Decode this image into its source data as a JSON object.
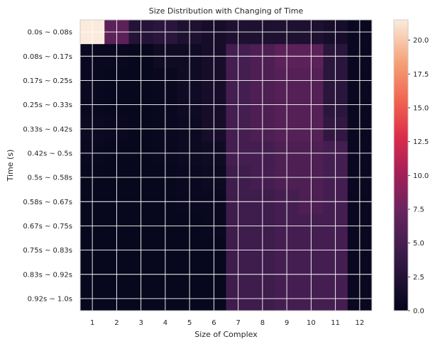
{
  "chart_data": {
    "type": "heatmap",
    "title": "Size Distribution with Changing of Time",
    "xlabel": "Size of Complex",
    "ylabel": "Time (s)",
    "x_categories": [
      "1",
      "2",
      "3",
      "4",
      "5",
      "6",
      "7",
      "8",
      "9",
      "10",
      "11",
      "12"
    ],
    "y_categories": [
      "0.0s ~ 0.08s",
      "0.08s ~ 0.17s",
      "0.17s ~ 0.25s",
      "0.25s ~ 0.33s",
      "0.33s ~ 0.42s",
      "0.42s ~ 0.5s",
      "0.5s ~ 0.58s",
      "0.58s ~ 0.67s",
      "0.67s ~ 0.75s",
      "0.75s ~ 0.83s",
      "0.83s ~ 0.92s",
      "0.92s ~ 1.0s"
    ],
    "values": [
      [
        21.5,
        6.5,
        2.5,
        3.0,
        2.0,
        1.5,
        2.0,
        2.0,
        2.0,
        2.0,
        1.5,
        0.5
      ],
      [
        0.5,
        0.5,
        0.3,
        1.0,
        1.0,
        1.5,
        5.0,
        5.5,
        6.5,
        6.5,
        3.0,
        0.5
      ],
      [
        0.5,
        0.3,
        0.3,
        0.5,
        1.0,
        1.5,
        5.0,
        5.5,
        6.0,
        6.0,
        3.0,
        0.5
      ],
      [
        0.5,
        0.3,
        0.3,
        0.5,
        1.0,
        1.5,
        5.0,
        5.5,
        6.0,
        6.0,
        3.0,
        0.5
      ],
      [
        0.7,
        0.5,
        0.3,
        0.5,
        0.7,
        1.5,
        5.0,
        5.5,
        6.0,
        6.0,
        3.5,
        0.5
      ],
      [
        0.5,
        0.3,
        0.3,
        0.5,
        0.7,
        1.0,
        5.0,
        5.0,
        5.5,
        5.5,
        5.0,
        0.5
      ],
      [
        0.3,
        0.3,
        0.3,
        0.3,
        0.5,
        0.7,
        4.5,
        5.0,
        5.5,
        5.5,
        5.0,
        0.5
      ],
      [
        0.3,
        0.3,
        0.3,
        0.3,
        0.5,
        0.5,
        4.5,
        4.5,
        5.0,
        5.5,
        5.0,
        0.5
      ],
      [
        0.3,
        0.3,
        0.3,
        0.3,
        0.3,
        0.5,
        4.5,
        4.5,
        5.0,
        5.0,
        5.0,
        0.5
      ],
      [
        0.3,
        0.3,
        0.3,
        0.3,
        0.3,
        0.3,
        4.5,
        4.5,
        5.0,
        5.0,
        5.0,
        0.5
      ],
      [
        0.3,
        0.3,
        0.3,
        0.3,
        0.3,
        0.3,
        4.5,
        4.5,
        5.0,
        5.0,
        5.0,
        0.5
      ],
      [
        0.3,
        0.3,
        0.3,
        0.3,
        0.3,
        0.3,
        4.5,
        4.5,
        5.0,
        5.0,
        5.0,
        0.5
      ]
    ],
    "colormap": "rocket",
    "vmin": 0,
    "vmax": 21.5,
    "colorbar_ticks": [
      "0.0",
      "2.5",
      "5.0",
      "7.5",
      "10.0",
      "12.5",
      "15.0",
      "17.5",
      "20.0"
    ],
    "grid": true,
    "grid_color": "#ffffff",
    "colorbar_placement": "right"
  }
}
